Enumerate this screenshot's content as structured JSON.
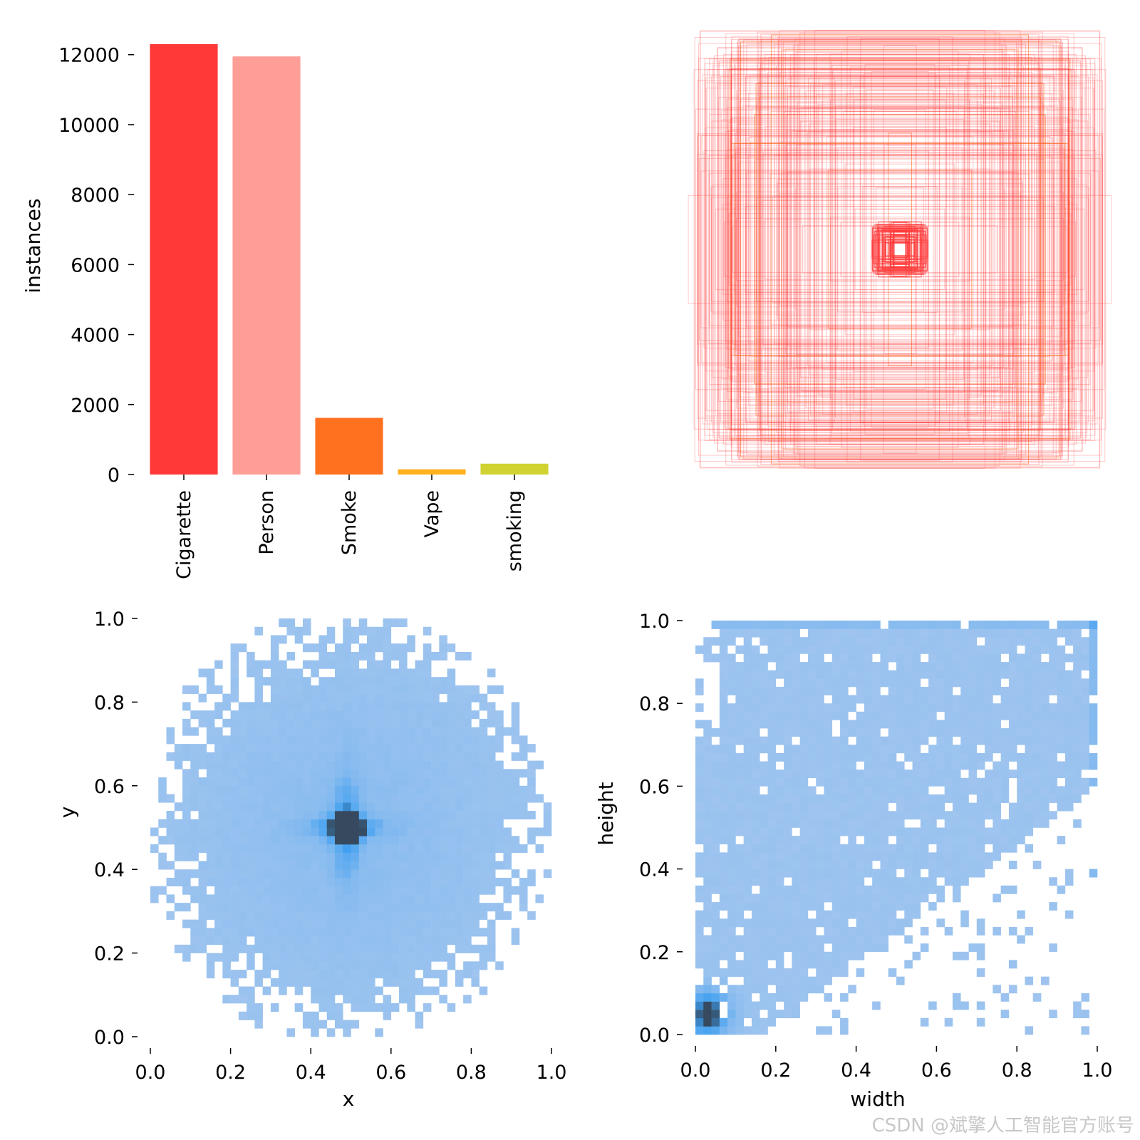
{
  "chart_data": [
    {
      "type": "bar",
      "categories": [
        "Cigarette",
        "Person",
        "Smoke",
        "Vape",
        "smoking"
      ],
      "values": [
        12300,
        11950,
        1620,
        150,
        310
      ],
      "colors": [
        "#ff3838",
        "#ff9d97",
        "#ff701f",
        "#ffb21d",
        "#cfd231"
      ],
      "ylabel": "instances",
      "ylim": [
        0,
        12300
      ],
      "yticks": [
        0,
        2000,
        4000,
        6000,
        8000,
        10000,
        12000
      ],
      "ytick_labels": [
        "0",
        "2000",
        "4000",
        "6000",
        "8000",
        "10000",
        "12000"
      ]
    },
    {
      "type": "boxes",
      "description_only": false,
      "title": "",
      "box_color": "#ff3838",
      "accent_color": "#ff701f"
    },
    {
      "type": "heatmap",
      "xlabel": "x",
      "ylabel": "y",
      "xlim": [
        0,
        1
      ],
      "ylim": [
        0,
        1
      ],
      "xticks": [
        "0.0",
        "0.2",
        "0.4",
        "0.6",
        "0.8",
        "1.0"
      ],
      "yticks": [
        "0.0",
        "0.2",
        "0.4",
        "0.6",
        "0.8",
        "1.0"
      ],
      "bins": 50,
      "peak": [
        0.49,
        0.5
      ],
      "colors": {
        "low": "#a9c8ef",
        "mid": "#3b9ef0",
        "high": "#36495e"
      }
    },
    {
      "type": "heatmap",
      "xlabel": "width",
      "ylabel": "height",
      "xlim": [
        0,
        1
      ],
      "ylim": [
        0,
        1
      ],
      "xticks": [
        "0.0",
        "0.2",
        "0.4",
        "0.6",
        "0.8",
        "1.0"
      ],
      "yticks": [
        "0.0",
        "0.2",
        "0.4",
        "0.6",
        "0.8",
        "1.0"
      ],
      "bins": 50,
      "peak": [
        0.03,
        0.05
      ],
      "colors": {
        "low": "#a9c8ef",
        "mid": "#3b9ef0",
        "high": "#36495e"
      }
    }
  ],
  "watermark": "CSDN @斌擎人工智能官方账号"
}
